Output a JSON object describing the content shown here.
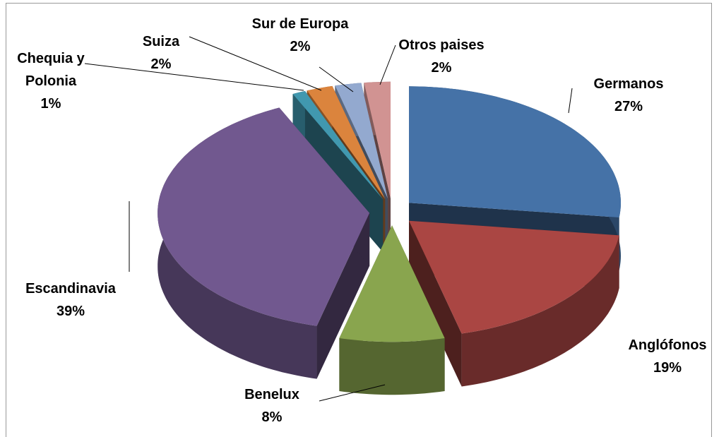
{
  "chart_data": {
    "type": "pie",
    "categories": [
      "Germanos",
      "Anglófonos",
      "Benelux",
      "Escandinavia",
      "Chequia y Polonia",
      "Suiza",
      "Sur de Europa",
      "Otros paises"
    ],
    "values": [
      27,
      19,
      8,
      39,
      1,
      2,
      2,
      2
    ],
    "value_labels": [
      "27%",
      "19%",
      "8%",
      "39%",
      "1%",
      "2%",
      "2%",
      "2%"
    ],
    "colors": [
      "#4572a7",
      "#aa4643",
      "#89a54e",
      "#71588f",
      "#4198af",
      "#db843d",
      "#93a9cf",
      "#d19392"
    ]
  }
}
